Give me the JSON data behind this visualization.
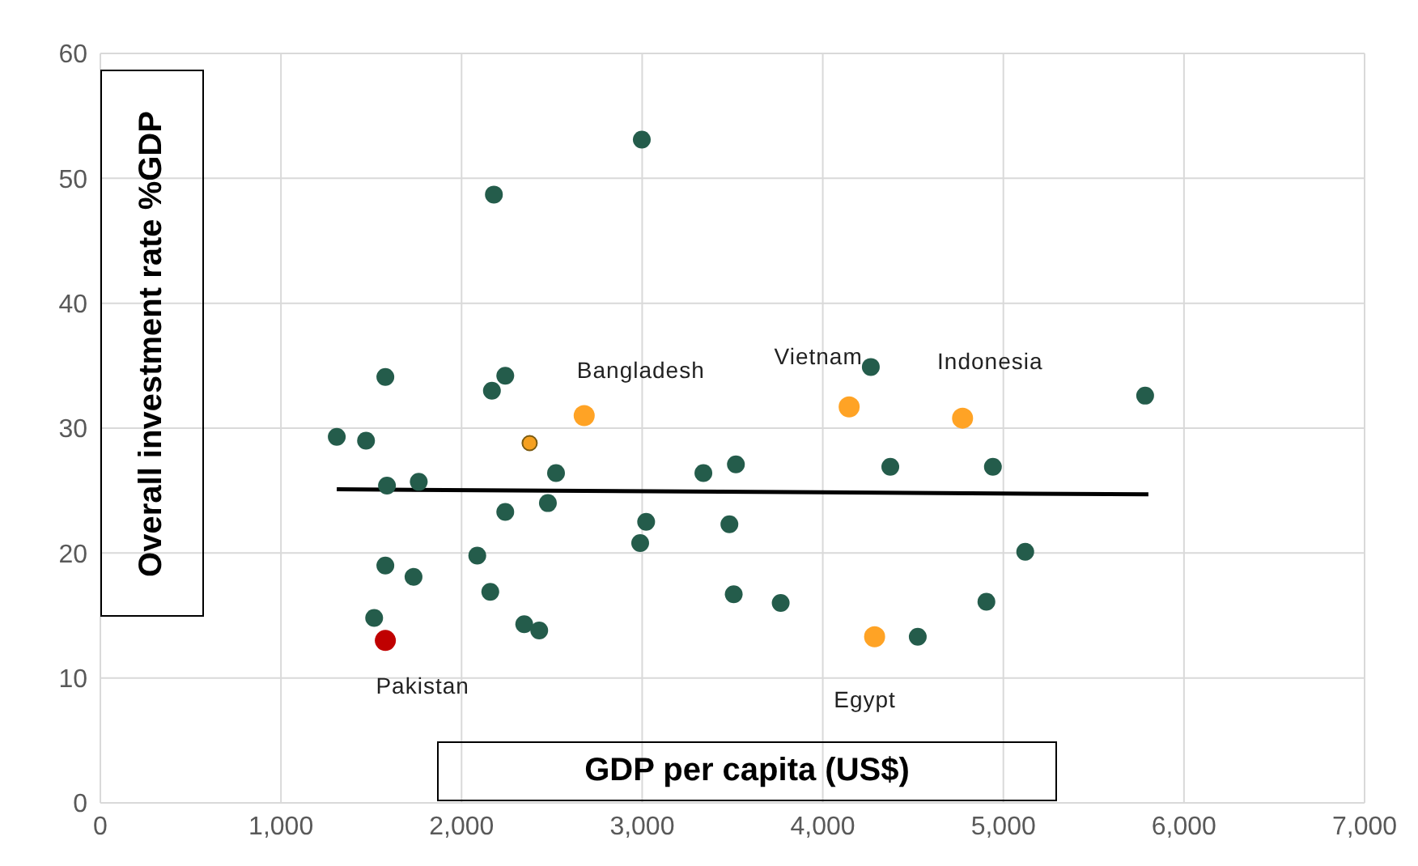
{
  "chart_data": {
    "type": "scatter",
    "xlabel": "GDP per capita (US$)",
    "ylabel": "Overall investment rate %GDP",
    "xlim": [
      0,
      7000
    ],
    "ylim": [
      0,
      60
    ],
    "xticks": [
      0,
      {
        "value": 1000,
        "label": "1,000"
      },
      {
        "value": 2000,
        "label": "2,000"
      },
      {
        "value": 3000,
        "label": "3,000"
      },
      {
        "value": 4000,
        "label": "4,000"
      },
      {
        "value": 5000,
        "label": "5,000"
      },
      {
        "value": 6000,
        "label": "6,000"
      },
      {
        "value": 7000,
        "label": "7,000"
      }
    ],
    "yticks": [
      0,
      10,
      20,
      30,
      40,
      50,
      60
    ],
    "grid": true,
    "marker": "circle",
    "series": [
      {
        "color": "#245c4b",
        "x": [
          1309,
          1471,
          1578,
          1587,
          1763,
          1578,
          1734,
          1516,
          2179,
          2998,
          2242,
          2168,
          2523,
          2478,
          2242,
          2087,
          2159,
          2347,
          2430,
          3022,
          2989,
          3339,
          3519,
          3483,
          3507,
          3767,
          4266,
          4374,
          4942,
          5785,
          5121,
          4906,
          4526
        ],
        "values": [
          29.3,
          29.0,
          34.1,
          25.4,
          25.7,
          19.0,
          18.1,
          14.8,
          48.7,
          53.1,
          34.2,
          33.0,
          26.4,
          24.0,
          23.3,
          19.8,
          16.9,
          14.3,
          13.8,
          22.5,
          20.8,
          26.4,
          27.1,
          22.3,
          16.7,
          16.0,
          34.9,
          26.9,
          26.9,
          32.6,
          20.1,
          16.1,
          13.3
        ]
      },
      {
        "color": "#ffa325",
        "x": [
          2679,
          4146,
          4774,
          4287
        ],
        "values": [
          31.0,
          31.7,
          30.8,
          13.3
        ]
      },
      {
        "color": "#f5a020",
        "x": [
          2377
        ],
        "values": [
          28.8
        ]
      },
      {
        "color": "#c00000",
        "x": [
          1578
        ],
        "values": [
          13.0
        ]
      },
      {
        "type": "line",
        "marker": "none",
        "color": "#000000",
        "x": [
          1309,
          5803
        ],
        "values": [
          25.1,
          24.7
        ]
      }
    ],
    "annotations": [
      {
        "text": "Bangladesh",
        "x": 2679,
        "y": 31.0
      },
      {
        "text": "Vietnam",
        "x": 4146,
        "y": 31.7
      },
      {
        "text": "Indonesia",
        "x": 4774,
        "y": 30.8
      },
      {
        "text": "Egypt",
        "x": 4287,
        "y": 13.3
      },
      {
        "text": "Pakistan",
        "x": 1578,
        "y": 13.0
      }
    ]
  }
}
